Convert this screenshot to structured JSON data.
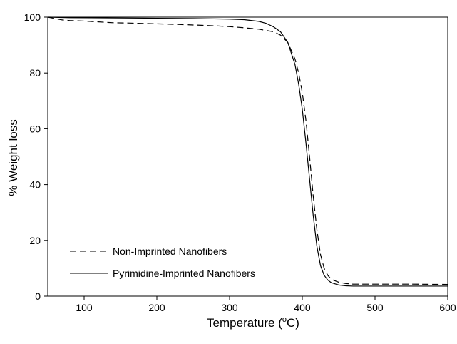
{
  "chart_data": {
    "type": "line",
    "title": "",
    "xlabel": "Temperature (°C)",
    "xlabel_main": "Temperature (",
    "xlabel_unit_base": "C)",
    "xlabel_unit_superscript": "o",
    "ylabel": "% Weight loss",
    "xlim": [
      50,
      600
    ],
    "ylim": [
      0,
      100
    ],
    "x_ticks": [
      100,
      200,
      300,
      400,
      500,
      600
    ],
    "y_ticks": [
      0,
      20,
      40,
      60,
      80,
      100
    ],
    "grid": false,
    "legend_position": "bottom-left",
    "series": [
      {
        "name": "Non-Imprinted Nanofibers",
        "line_style": "dashed",
        "color": "#000000",
        "points": [
          [
            50,
            100
          ],
          [
            60,
            99.5
          ],
          [
            70,
            99.0
          ],
          [
            80,
            98.8
          ],
          [
            100,
            98.6
          ],
          [
            120,
            98.3
          ],
          [
            140,
            98.0
          ],
          [
            160,
            97.9
          ],
          [
            200,
            97.6
          ],
          [
            240,
            97.3
          ],
          [
            280,
            96.9
          ],
          [
            300,
            96.6
          ],
          [
            320,
            96.2
          ],
          [
            340,
            95.7
          ],
          [
            360,
            94.8
          ],
          [
            370,
            93.6
          ],
          [
            380,
            91.0
          ],
          [
            390,
            85.0
          ],
          [
            395,
            80.0
          ],
          [
            400,
            73.0
          ],
          [
            405,
            63.0
          ],
          [
            410,
            50.0
          ],
          [
            415,
            36.0
          ],
          [
            420,
            24.0
          ],
          [
            425,
            15.0
          ],
          [
            430,
            10.0
          ],
          [
            435,
            7.5
          ],
          [
            440,
            6.0
          ],
          [
            450,
            5.0
          ],
          [
            460,
            4.5
          ],
          [
            470,
            4.3
          ],
          [
            500,
            4.3
          ],
          [
            550,
            4.3
          ],
          [
            600,
            4.2
          ]
        ]
      },
      {
        "name": "Pyrimidine-Imprinted Nanofibers",
        "line_style": "solid",
        "color": "#000000",
        "points": [
          [
            50,
            100
          ],
          [
            80,
            99.8
          ],
          [
            150,
            99.7
          ],
          [
            200,
            99.6
          ],
          [
            250,
            99.5
          ],
          [
            300,
            99.3
          ],
          [
            320,
            99.1
          ],
          [
            340,
            98.5
          ],
          [
            350,
            97.8
          ],
          [
            360,
            96.6
          ],
          [
            370,
            94.8
          ],
          [
            380,
            91.0
          ],
          [
            390,
            83.0
          ],
          [
            395,
            76.0
          ],
          [
            400,
            67.0
          ],
          [
            405,
            55.0
          ],
          [
            410,
            42.0
          ],
          [
            415,
            29.0
          ],
          [
            420,
            18.0
          ],
          [
            425,
            11.0
          ],
          [
            430,
            7.5
          ],
          [
            435,
            5.8
          ],
          [
            440,
            4.8
          ],
          [
            450,
            4.0
          ],
          [
            460,
            3.7
          ],
          [
            470,
            3.6
          ],
          [
            500,
            3.6
          ],
          [
            550,
            3.6
          ],
          [
            600,
            3.6
          ]
        ]
      }
    ]
  }
}
